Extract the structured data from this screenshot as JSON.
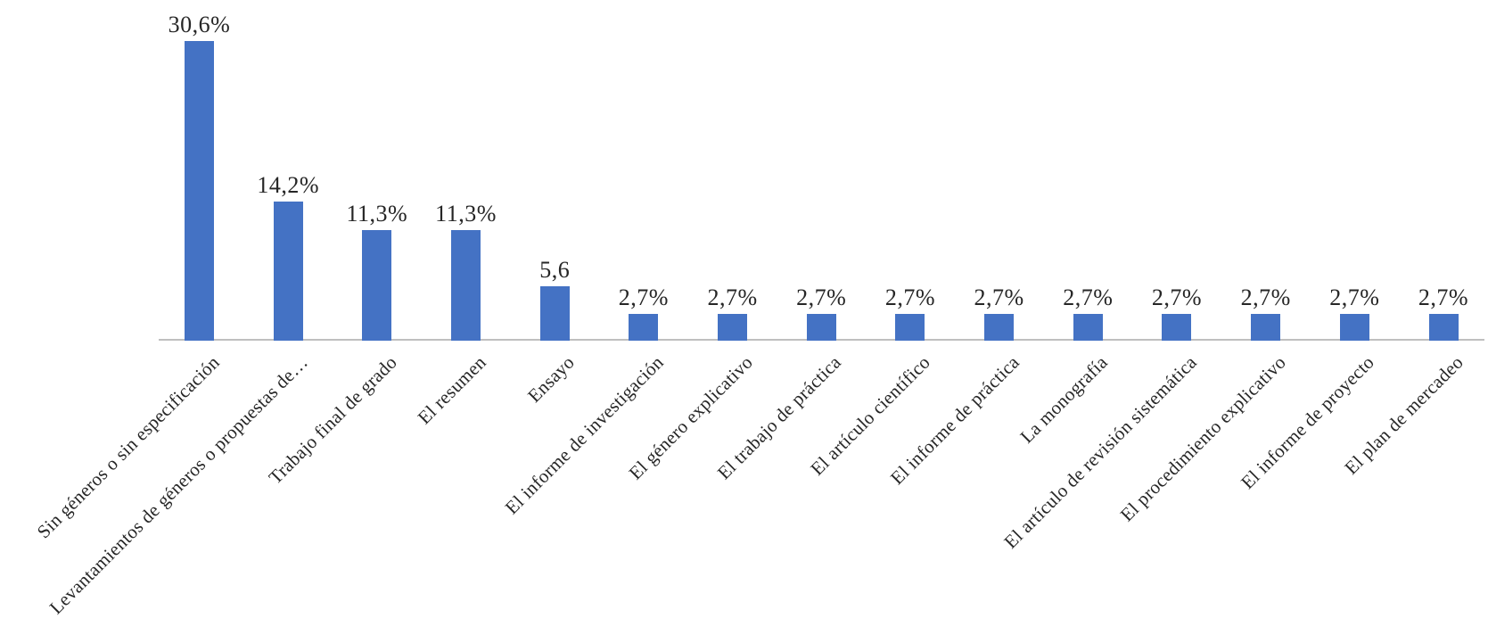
{
  "chart_data": {
    "type": "bar",
    "title": "",
    "xlabel": "",
    "ylabel": "",
    "categories": [
      "Sin géneros o sin especificación",
      "Levantamientos de géneros o propuestas de…",
      "Trabajo final de grado",
      "El resumen",
      "Ensayo",
      "El informe de investigación",
      "El género explicativo",
      "El trabajo de práctica",
      "El artículo científico",
      "El informe de práctica",
      "La monografía",
      "El artículo de revisión sistemática",
      "El procedimiento explicativo",
      "El informe de proyecto",
      "El plan de mercadeo"
    ],
    "values": [
      30.6,
      14.2,
      11.3,
      11.3,
      5.6,
      2.7,
      2.7,
      2.7,
      2.7,
      2.7,
      2.7,
      2.7,
      2.7,
      2.7,
      2.7
    ],
    "data_labels": [
      "30,6%",
      "14,2%",
      "11,3%",
      "11,3%",
      "5,6",
      "2,7%",
      "2,7%",
      "2,7%",
      "2,7%",
      "2,7%",
      "2,7%",
      "2,7%",
      "2,7%",
      "2,7%",
      "2,7%"
    ],
    "ylim": [
      0,
      32
    ],
    "grid": false,
    "legend": false,
    "bar_color": "#4472C4",
    "axis_line_color": "#BFBFBF",
    "text_color": "#262626",
    "category_label_rotation_deg": 45,
    "data_labels_position": "above"
  }
}
